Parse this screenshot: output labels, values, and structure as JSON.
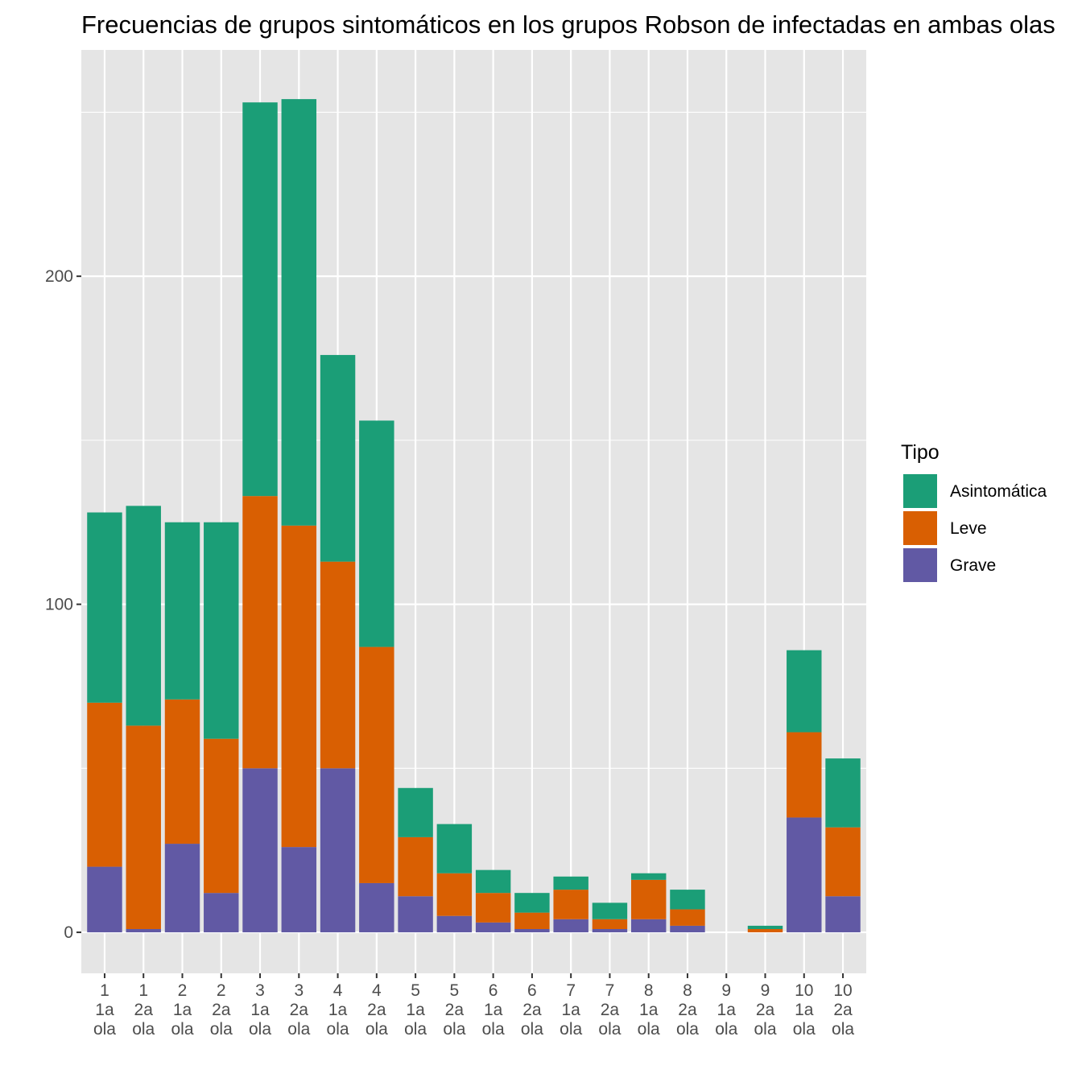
{
  "chart_data": {
    "type": "bar",
    "stacked": true,
    "title": "Frecuencias de grupos sintomáticos en los grupos Robson de  infectadas en ambas olas",
    "xlabel": "",
    "ylabel": "",
    "ylim": [
      -12.5,
      269
    ],
    "yticks": [
      0,
      100,
      200
    ],
    "grid": true,
    "legend_position": "right",
    "legend_title": "Tipo",
    "categories": [
      [
        "1",
        "1a",
        "ola"
      ],
      [
        "1",
        "2a",
        "ola"
      ],
      [
        "2",
        "1a",
        "ola"
      ],
      [
        "2",
        "2a",
        "ola"
      ],
      [
        "3",
        "1a",
        "ola"
      ],
      [
        "3",
        "2a",
        "ola"
      ],
      [
        "4",
        "1a",
        "ola"
      ],
      [
        "4",
        "2a",
        "ola"
      ],
      [
        "5",
        "1a",
        "ola"
      ],
      [
        "5",
        "2a",
        "ola"
      ],
      [
        "6",
        "1a",
        "ola"
      ],
      [
        "6",
        "2a",
        "ola"
      ],
      [
        "7",
        "1a",
        "ola"
      ],
      [
        "7",
        "2a",
        "ola"
      ],
      [
        "8",
        "1a",
        "ola"
      ],
      [
        "8",
        "2a",
        "ola"
      ],
      [
        "9",
        "1a",
        "ola"
      ],
      [
        "9",
        "2a",
        "ola"
      ],
      [
        "10",
        "1a",
        "ola"
      ],
      [
        "10",
        "2a",
        "ola"
      ]
    ],
    "series": [
      {
        "name": "Grave",
        "color": "#6159A4",
        "values": [
          20,
          1,
          27,
          12,
          50,
          26,
          50,
          15,
          11,
          5,
          3,
          1,
          4,
          1,
          4,
          2,
          0,
          0,
          35,
          11
        ]
      },
      {
        "name": "Leve",
        "color": "#D95F02",
        "values": [
          50,
          62,
          44,
          47,
          83,
          98,
          63,
          72,
          18,
          13,
          9,
          5,
          9,
          3,
          12,
          5,
          0,
          1,
          26,
          21
        ]
      },
      {
        "name": "Asintomática",
        "color": "#1B9E77",
        "values": [
          58,
          67,
          54,
          66,
          120,
          130,
          63,
          69,
          15,
          15,
          7,
          6,
          4,
          5,
          2,
          6,
          0,
          1,
          25,
          21
        ]
      }
    ],
    "legend_order": [
      "Asintomática",
      "Leve",
      "Grave"
    ]
  }
}
